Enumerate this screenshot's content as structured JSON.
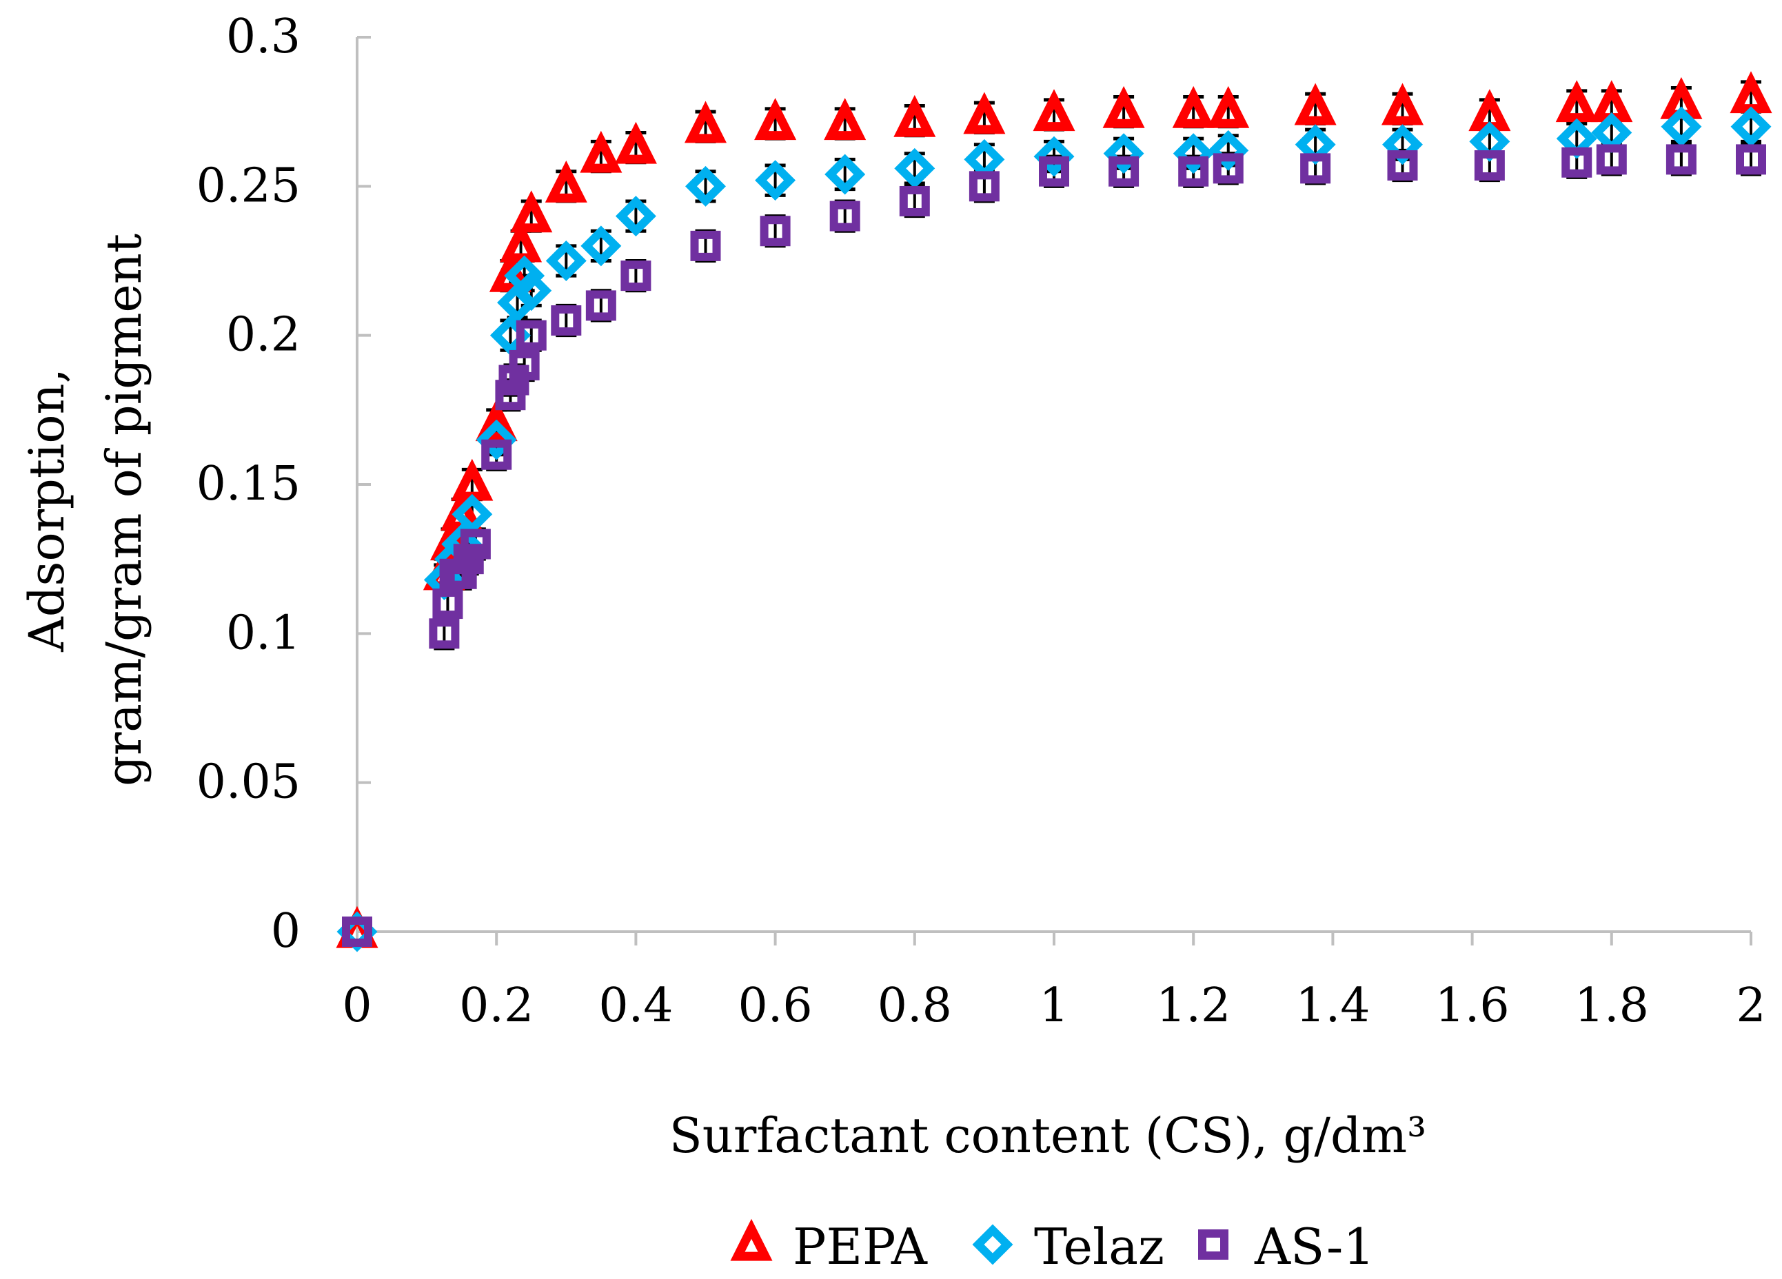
{
  "chart_data": {
    "type": "scatter",
    "title": "",
    "xlabel": "Surfactant content (CS), g/dm³",
    "ylabel_line1": "Adsorption,",
    "ylabel_line2": "gram/gram of pigment",
    "xlim": [
      0,
      2
    ],
    "ylim": [
      0,
      0.3
    ],
    "x_ticks": [
      0,
      0.2,
      0.4,
      0.6,
      0.8,
      1,
      1.2,
      1.4,
      1.6,
      1.8,
      2
    ],
    "x_tick_labels": [
      "0",
      "0.2",
      "0.4",
      "0.6",
      "0.8",
      "1",
      "1.2",
      "1.4",
      "1.6",
      "1.8",
      "2"
    ],
    "y_ticks": [
      0,
      0.05,
      0.1,
      0.15,
      0.2,
      0.25,
      0.3
    ],
    "y_tick_labels": [
      "0",
      "0.05",
      "0.1",
      "0.15",
      "0.2",
      "0.25",
      "0.3"
    ],
    "grid": false,
    "legend_position": "bottom",
    "error_bar": 0.005,
    "series": [
      {
        "name": "PEPA",
        "marker": "triangle",
        "color": "#ff0000",
        "x": [
          0,
          0.125,
          0.135,
          0.15,
          0.165,
          0.2,
          0.22,
          0.235,
          0.25,
          0.3,
          0.35,
          0.4,
          0.5,
          0.6,
          0.7,
          0.8,
          0.9,
          1.0,
          1.1,
          1.2,
          1.25,
          1.375,
          1.5,
          1.625,
          1.75,
          1.8,
          1.9,
          2.0
        ],
        "y": [
          0,
          0.12,
          0.13,
          0.14,
          0.15,
          0.17,
          0.22,
          0.23,
          0.24,
          0.25,
          0.26,
          0.263,
          0.27,
          0.271,
          0.271,
          0.272,
          0.273,
          0.274,
          0.275,
          0.275,
          0.275,
          0.276,
          0.276,
          0.274,
          0.277,
          0.277,
          0.278,
          0.28
        ]
      },
      {
        "name": "Telaz",
        "marker": "diamond",
        "color": "#00b0f0",
        "x": [
          0,
          0.125,
          0.14,
          0.15,
          0.165,
          0.2,
          0.22,
          0.23,
          0.24,
          0.25,
          0.3,
          0.35,
          0.4,
          0.5,
          0.6,
          0.7,
          0.8,
          0.9,
          1.0,
          1.1,
          1.2,
          1.25,
          1.375,
          1.5,
          1.625,
          1.75,
          1.8,
          1.9,
          2.0
        ],
        "y": [
          0,
          0.118,
          0.125,
          0.13,
          0.14,
          0.165,
          0.2,
          0.211,
          0.22,
          0.215,
          0.225,
          0.23,
          0.24,
          0.25,
          0.252,
          0.254,
          0.256,
          0.259,
          0.26,
          0.261,
          0.261,
          0.262,
          0.264,
          0.264,
          0.265,
          0.266,
          0.268,
          0.27,
          0.27
        ]
      },
      {
        "name": "AS-1",
        "marker": "square",
        "color": "#7030a0",
        "x": [
          0,
          0.125,
          0.13,
          0.14,
          0.15,
          0.16,
          0.17,
          0.2,
          0.22,
          0.225,
          0.24,
          0.25,
          0.3,
          0.35,
          0.4,
          0.5,
          0.6,
          0.7,
          0.8,
          0.9,
          1.0,
          1.1,
          1.2,
          1.25,
          1.375,
          1.5,
          1.625,
          1.75,
          1.8,
          1.9,
          2.0
        ],
        "y": [
          0,
          0.1,
          0.11,
          0.12,
          0.12,
          0.125,
          0.13,
          0.16,
          0.18,
          0.185,
          0.19,
          0.2,
          0.205,
          0.21,
          0.22,
          0.23,
          0.235,
          0.24,
          0.245,
          0.25,
          0.255,
          0.255,
          0.255,
          0.256,
          0.256,
          0.257,
          0.257,
          0.258,
          0.259,
          0.259,
          0.259
        ]
      }
    ]
  }
}
